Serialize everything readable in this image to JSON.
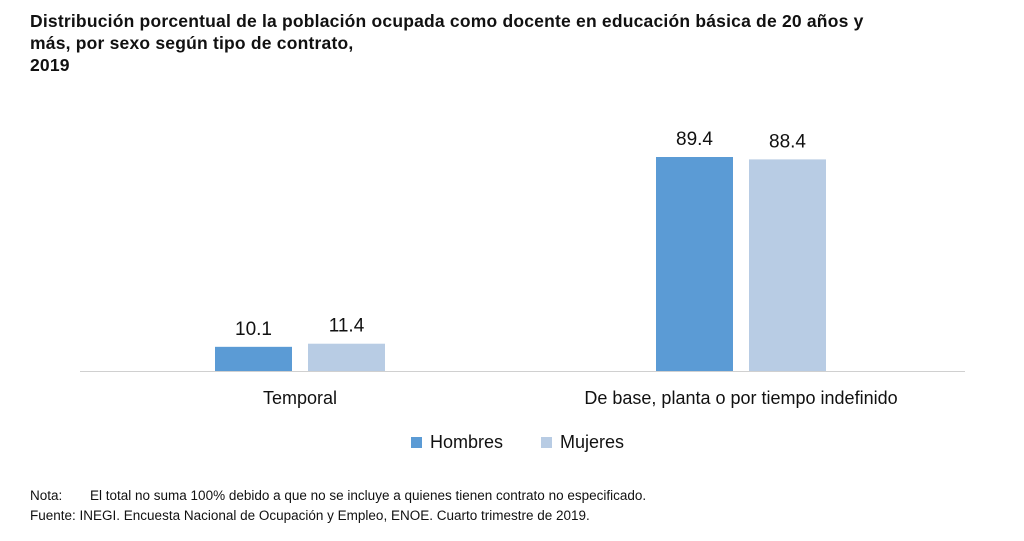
{
  "chart_data": {
    "type": "bar",
    "title_lines": [
      "Distribución porcentual de la población ocupada como docente en educación básica de 20 años y",
      "más, por sexo según tipo de contrato,",
      "2019"
    ],
    "categories": [
      "Temporal",
      "De base, planta o por tiempo indefinido"
    ],
    "series": [
      {
        "name": "Hombres",
        "values": [
          10.1,
          89.4
        ],
        "color": "#5b9bd5"
      },
      {
        "name": "Mujeres",
        "values": [
          11.4,
          88.4
        ],
        "color": "#b8cce4"
      }
    ],
    "value_labels": [
      [
        "10.1",
        "89.4"
      ],
      [
        "11.4",
        "88.4"
      ]
    ],
    "xlabel": "",
    "ylabel": "",
    "ylim": [
      0,
      100
    ],
    "grid": false,
    "legend": "bottom-center"
  },
  "notes": {
    "nota_label": "Nota:",
    "nota_text": "El total no suma 100% debido a que no se incluye a quienes tienen contrato no especificado.",
    "fuente": "Fuente: INEGI. Encuesta Nacional de Ocupación y Empleo, ENOE. Cuarto trimestre de 2019."
  }
}
